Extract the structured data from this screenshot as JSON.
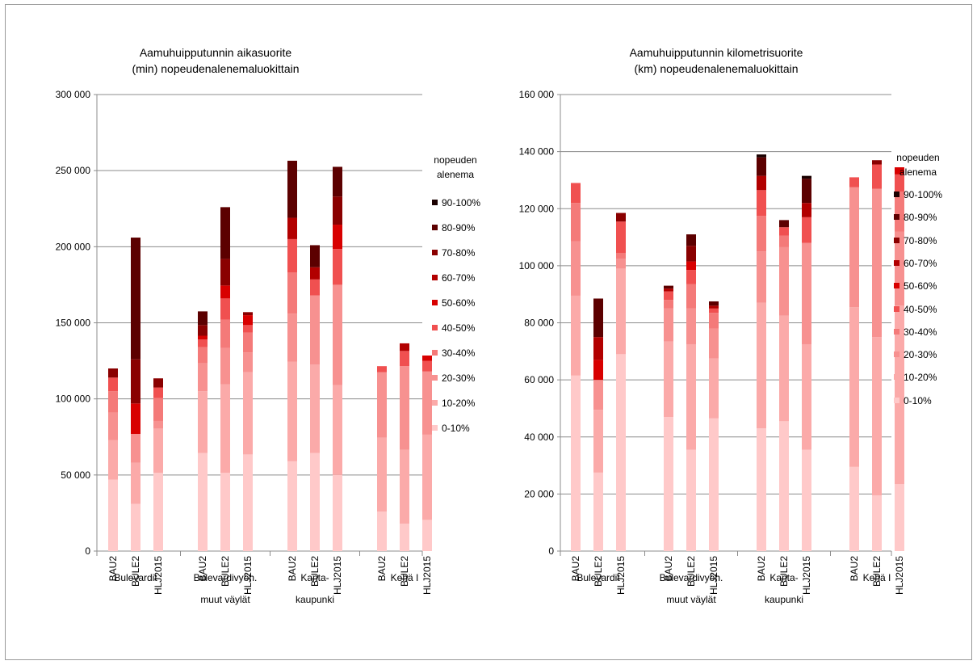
{
  "colors": {
    "0-10%": "#ffc9c9",
    "10-20%": "#fbaaa9",
    "20-30%": "#f79190",
    "30-40%": "#f47a79",
    "40-50%": "#f05050",
    "50-60%": "#d80000",
    "60-70%": "#b20000",
    "70-80%": "#8a0000",
    "80-90%": "#5c0000",
    "90-100%": "#1a0000"
  },
  "chart_data": [
    {
      "type": "bar",
      "stacked": true,
      "title": [
        "Aamuhuipputunnin aikasuorite",
        "(min) nopeudenalenemaluokittain"
      ],
      "ylim": [
        0,
        300000
      ],
      "yticks": [
        0,
        50000,
        100000,
        150000,
        200000,
        250000,
        300000
      ],
      "ytick_labels": [
        "0",
        "50 000",
        "100 000",
        "150 000",
        "200 000",
        "250 000",
        "300 000"
      ],
      "grid": true,
      "legend_position": "right",
      "legend_title": [
        "nopeuden",
        "alenema"
      ],
      "groups": [
        {
          "label": [
            "Bulevardit"
          ]
        },
        {
          "label": [
            "Bulevardivyöh.",
            "muut väylät"
          ]
        },
        {
          "label": [
            "Kanta-",
            "kaupunki"
          ]
        },
        {
          "label": [
            "Kehä I"
          ]
        }
      ],
      "categories": [
        "BAU2",
        "BULE2",
        "HLJ2015",
        "BAU2",
        "BULE2",
        "HLJ2015",
        "BAU2",
        "BULE2",
        "HLJ2015",
        "BAU2",
        "BULE2",
        "HLJ2015"
      ],
      "series": [
        {
          "name": "0-10%",
          "values": [
            47000,
            31000,
            51500,
            64500,
            51500,
            63500,
            59000,
            64500,
            50000,
            26000,
            18000,
            20500
          ]
        },
        {
          "name": "10-20%",
          "values": [
            26000,
            27000,
            29000,
            40500,
            58000,
            54000,
            65500,
            58000,
            59000,
            48500,
            48500,
            56000
          ]
        },
        {
          "name": "20-30%",
          "values": [
            18000,
            19000,
            5000,
            18500,
            24000,
            13000,
            31500,
            45500,
            66000,
            43000,
            55000,
            41500
          ]
        },
        {
          "name": "30-40%",
          "values": [
            14000,
            0,
            15000,
            10500,
            18500,
            13000,
            27000,
            0,
            0,
            0,
            0,
            0
          ]
        },
        {
          "name": "40-50%",
          "values": [
            9000,
            0,
            7000,
            5000,
            14000,
            5000,
            22000,
            10500,
            23500,
            4000,
            10000,
            7000
          ]
        },
        {
          "name": "50-60%",
          "values": [
            0,
            20000,
            0,
            2500,
            8500,
            6500,
            0,
            0,
            16000,
            0,
            0,
            3500
          ]
        },
        {
          "name": "60-70%",
          "values": [
            0,
            0,
            0,
            0,
            0,
            0,
            14000,
            8000,
            0,
            0,
            5000,
            0
          ]
        },
        {
          "name": "70-80%",
          "values": [
            6000,
            29000,
            6000,
            7000,
            17500,
            2000,
            0,
            0,
            18500,
            0,
            0,
            0
          ]
        },
        {
          "name": "80-90%",
          "values": [
            0,
            80000,
            0,
            9000,
            34000,
            0,
            37500,
            14500,
            19500,
            0,
            0,
            0
          ]
        },
        {
          "name": "90-100%",
          "values": [
            0,
            0,
            0,
            0,
            0,
            0,
            0,
            0,
            0,
            0,
            0,
            0
          ]
        }
      ]
    },
    {
      "type": "bar",
      "stacked": true,
      "title": [
        "Aamuhuipputunnin kilometrisuorite",
        "(km) nopeudenalenemaluokittain"
      ],
      "ylim": [
        0,
        160000
      ],
      "yticks": [
        0,
        20000,
        40000,
        60000,
        80000,
        100000,
        120000,
        140000,
        160000
      ],
      "ytick_labels": [
        "0",
        "20 000",
        "40 000",
        "60 000",
        "80 000",
        "100 000",
        "120 000",
        "140 000",
        "160 000"
      ],
      "grid": true,
      "legend_position": "right",
      "legend_title": [
        "nopeuden",
        "alenema"
      ],
      "groups": [
        {
          "label": [
            "Bulevardit"
          ]
        },
        {
          "label": [
            "Bulevardivyöh.",
            "muut väylät"
          ]
        },
        {
          "label": [
            "Kanta-",
            "kaupunki"
          ]
        },
        {
          "label": [
            "Kehä I"
          ]
        }
      ],
      "categories": [
        "BAU2",
        "BULE2",
        "HLJ2015",
        "BAU2",
        "BULE2",
        "HLJ2015",
        "BAU2",
        "BULE2",
        "HLJ2015",
        "BAU2",
        "BULE2",
        "HLJ2015"
      ],
      "series": [
        {
          "name": "0-10%",
          "values": [
            61500,
            27500,
            69000,
            47000,
            35500,
            46500,
            43000,
            45500,
            35500,
            29500,
            19500,
            23500
          ]
        },
        {
          "name": "10-20%",
          "values": [
            28000,
            22000,
            30000,
            26500,
            37000,
            21000,
            44000,
            37000,
            37000,
            56000,
            55500,
            62500
          ]
        },
        {
          "name": "20-30%",
          "values": [
            19000,
            10500,
            3500,
            11500,
            12500,
            10500,
            18000,
            24000,
            35500,
            42000,
            52000,
            26000
          ]
        },
        {
          "name": "30-40%",
          "values": [
            13500,
            0,
            2000,
            3000,
            8500,
            5500,
            12500,
            4000,
            0,
            0,
            0,
            14000
          ]
        },
        {
          "name": "40-50%",
          "values": [
            7000,
            0,
            11000,
            3000,
            5000,
            1500,
            9000,
            3000,
            9000,
            3500,
            8500,
            6000
          ]
        },
        {
          "name": "50-60%",
          "values": [
            0,
            7000,
            0,
            0,
            3000,
            0,
            0,
            0,
            0,
            0,
            0,
            2500
          ]
        },
        {
          "name": "60-70%",
          "values": [
            0,
            8000,
            0,
            1000,
            0,
            1000,
            5000,
            0,
            5000,
            0,
            0,
            0
          ]
        },
        {
          "name": "70-80%",
          "values": [
            0,
            0,
            3000,
            0,
            5500,
            0,
            0,
            0,
            0,
            0,
            1500,
            0
          ]
        },
        {
          "name": "80-90%",
          "values": [
            0,
            13500,
            0,
            1000,
            4000,
            1500,
            6500,
            2500,
            8500,
            0,
            0,
            0
          ]
        },
        {
          "name": "90-100%",
          "values": [
            0,
            0,
            0,
            0,
            0,
            0,
            1000,
            0,
            1000,
            0,
            0,
            0
          ]
        }
      ]
    }
  ]
}
